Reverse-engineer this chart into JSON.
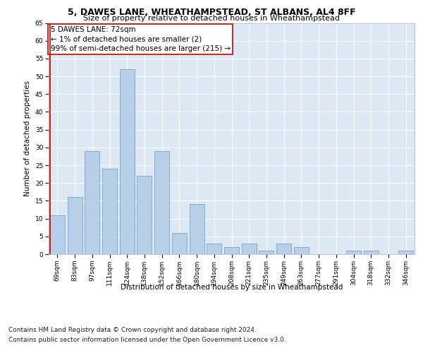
{
  "title1": "5, DAWES LANE, WHEATHAMPSTEAD, ST ALBANS, AL4 8FF",
  "title2": "Size of property relative to detached houses in Wheathampstead",
  "xlabel": "Distribution of detached houses by size in Wheathampstead",
  "ylabel": "Number of detached properties",
  "categories": [
    "69sqm",
    "83sqm",
    "97sqm",
    "111sqm",
    "124sqm",
    "138sqm",
    "152sqm",
    "166sqm",
    "180sqm",
    "194sqm",
    "208sqm",
    "221sqm",
    "235sqm",
    "249sqm",
    "263sqm",
    "277sqm",
    "291sqm",
    "304sqm",
    "318sqm",
    "332sqm",
    "346sqm"
  ],
  "values": [
    11,
    16,
    29,
    24,
    52,
    22,
    29,
    6,
    14,
    3,
    2,
    3,
    1,
    3,
    2,
    0,
    0,
    1,
    1,
    0,
    1
  ],
  "bar_color": "#b8cfe8",
  "bar_edge_color": "#6699cc",
  "highlight_color": "#cc0000",
  "annotation_box_text": "5 DAWES LANE: 72sqm\n← 1% of detached houses are smaller (2)\n99% of semi-detached houses are larger (215) →",
  "annotation_box_color": "#cc0000",
  "ylim": [
    0,
    65
  ],
  "yticks": [
    0,
    5,
    10,
    15,
    20,
    25,
    30,
    35,
    40,
    45,
    50,
    55,
    60,
    65
  ],
  "footnote1": "Contains HM Land Registry data © Crown copyright and database right 2024.",
  "footnote2": "Contains public sector information licensed under the Open Government Licence v3.0.",
  "background_color": "#dde8f5",
  "grid_color": "#ffffff",
  "title1_fontsize": 9,
  "title2_fontsize": 8,
  "axis_label_fontsize": 7.5,
  "tick_fontsize": 6.5,
  "annotation_fontsize": 7.5,
  "footnote_fontsize": 6.5
}
